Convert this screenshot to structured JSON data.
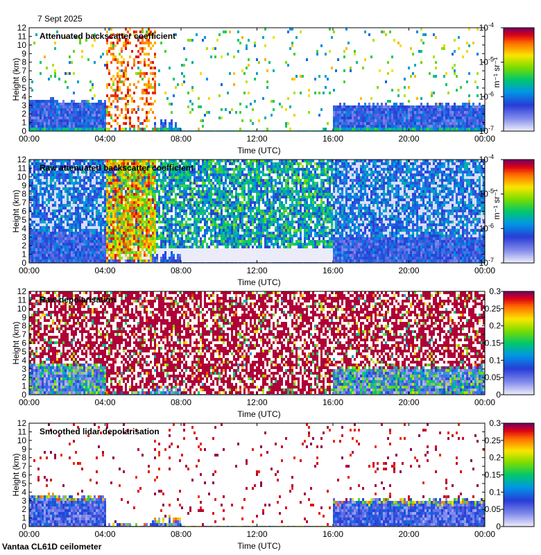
{
  "header": {
    "date": "7 Sept 2025"
  },
  "footer": {
    "station": "Vantaa CL61D ceilometer"
  },
  "chart_data": [
    {
      "type": "heatmap",
      "title": "Attenuated backscatter coefficient",
      "xlabel": "Time (UTC)",
      "ylabel": "Height (km)",
      "xticks": [
        "00:00",
        "04:00",
        "08:00",
        "12:00",
        "16:00",
        "20:00",
        "00:00"
      ],
      "xlim_hours": [
        0,
        24
      ],
      "yticks": [
        0,
        1,
        2,
        3,
        4,
        5,
        6,
        7,
        8,
        9,
        10,
        11,
        12
      ],
      "ylim_km": [
        0,
        12
      ],
      "colorbar": {
        "scale": "log",
        "unit": "m⁻¹ sr⁻¹",
        "ticks": [
          {
            "value": 1e-07,
            "label": "10",
            "exp": "-7"
          },
          {
            "value": 1e-06,
            "label": "10",
            "exp": "-6"
          },
          {
            "value": 1e-05,
            "label": "10",
            "exp": "-5"
          },
          {
            "value": 0.0001,
            "label": "10",
            "exp": "-4"
          }
        ],
        "range": [
          1e-07,
          0.0001
        ]
      },
      "features": {
        "boundary_layer_top_km": {
          "00:00-04:00": 3.8,
          "04:00-08:00": 0.3,
          "08:00-16:00": 0.2,
          "16:00-24:00": 3.5
        },
        "aerosol_layer_event": "04:00-06:40 up to 12 km"
      }
    },
    {
      "type": "heatmap",
      "title": "Raw attenuated backscatter coefficient",
      "xlabel": "Time (UTC)",
      "ylabel": "Height (km)",
      "xticks": [
        "00:00",
        "04:00",
        "08:00",
        "12:00",
        "16:00",
        "20:00",
        "00:00"
      ],
      "xlim_hours": [
        0,
        24
      ],
      "yticks": [
        0,
        1,
        2,
        3,
        4,
        5,
        6,
        7,
        8,
        9,
        10,
        11,
        12
      ],
      "ylim_km": [
        0,
        12
      ],
      "colorbar": {
        "scale": "log",
        "unit": "m⁻¹ sr⁻¹",
        "ticks": [
          {
            "value": 1e-07,
            "label": "10",
            "exp": "-7"
          },
          {
            "value": 1e-06,
            "label": "10",
            "exp": "-6"
          },
          {
            "value": 1e-05,
            "label": "10",
            "exp": "-5"
          },
          {
            "value": 0.0001,
            "label": "10",
            "exp": "-4"
          }
        ],
        "range": [
          1e-07,
          0.0001
        ]
      }
    },
    {
      "type": "heatmap",
      "title": "Raw depolarisation",
      "xlabel": "Time (UTC)",
      "ylabel": "Height (km)",
      "xticks": [
        "00:00",
        "04:00",
        "08:00",
        "12:00",
        "16:00",
        "20:00",
        "00:00"
      ],
      "xlim_hours": [
        0,
        24
      ],
      "yticks": [
        0,
        1,
        2,
        3,
        4,
        5,
        6,
        7,
        8,
        9,
        10,
        11,
        12
      ],
      "ylim_km": [
        0,
        12
      ],
      "colorbar": {
        "scale": "linear",
        "unit": "",
        "ticks": [
          {
            "value": 0,
            "label": "0"
          },
          {
            "value": 0.05,
            "label": "0.05"
          },
          {
            "value": 0.1,
            "label": "0.1"
          },
          {
            "value": 0.15,
            "label": "0.15"
          },
          {
            "value": 0.2,
            "label": "0.2"
          },
          {
            "value": 0.25,
            "label": "0.25"
          },
          {
            "value": 0.3,
            "label": "0.3"
          }
        ],
        "range": [
          0,
          0.3
        ]
      }
    },
    {
      "type": "heatmap",
      "title": "Smoothed lidar depolarisation",
      "xlabel": "Time (UTC)",
      "ylabel": "Height (km)",
      "xticks": [
        "00:00",
        "04:00",
        "08:00",
        "12:00",
        "16:00",
        "20:00",
        "00:00"
      ],
      "xlim_hours": [
        0,
        24
      ],
      "yticks": [
        0,
        1,
        2,
        3,
        4,
        5,
        6,
        7,
        8,
        9,
        10,
        11,
        12
      ],
      "ylim_km": [
        0,
        12
      ],
      "colorbar": {
        "scale": "linear",
        "unit": "",
        "ticks": [
          {
            "value": 0,
            "label": "0"
          },
          {
            "value": 0.05,
            "label": "0.05"
          },
          {
            "value": 0.1,
            "label": "0.1"
          },
          {
            "value": 0.15,
            "label": "0.15"
          },
          {
            "value": 0.2,
            "label": "0.2"
          },
          {
            "value": 0.25,
            "label": "0.25"
          },
          {
            "value": 0.3,
            "label": "0.3"
          }
        ],
        "range": [
          0,
          0.3
        ]
      }
    }
  ]
}
